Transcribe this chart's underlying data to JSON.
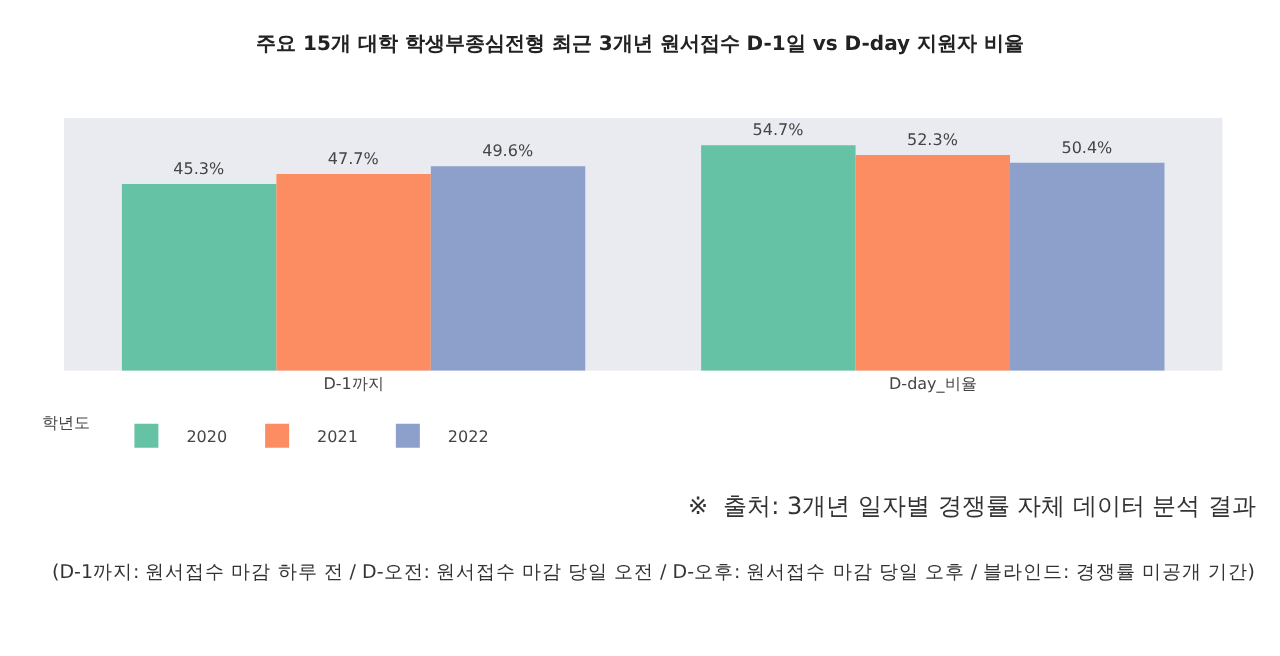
{
  "chart_data": {
    "type": "bar",
    "title": "주요 15개 대학 학생부종심전형 최근 3개년 원서접수 D-1일 vs D-day 지원자 비율",
    "categories": [
      "D-1까지",
      "D-day_비율"
    ],
    "legend": "bottom left",
    "legend_title": "학년도",
    "series": [
      {
        "name": "2020",
        "color": "#66c2a5",
        "values": [
          45.3,
          54.7
        ],
        "value_labels": [
          "45.3%",
          "54.7%"
        ]
      },
      {
        "name": "2021",
        "color": "#fc8d62",
        "values": [
          47.7,
          52.3
        ],
        "value_labels": [
          "47.7%",
          "52.3%"
        ]
      },
      {
        "name": "2022",
        "color": "#8da0cb",
        "values": [
          49.6,
          50.4
        ],
        "value_labels": [
          "49.6%",
          "50.4%"
        ]
      }
    ],
    "annotations": [
      "※  출처: 3개년 일자별 경쟁률 자체 데이터 분석 결과",
      "(D-1까지: 원서접수 마감 하루 전 / D-오전: 원서접수 마감 당일 오전 / D-오후: 원서접수 마감 당일 오후 / 블라인드: 경쟁률 미공개 기간)"
    ]
  }
}
